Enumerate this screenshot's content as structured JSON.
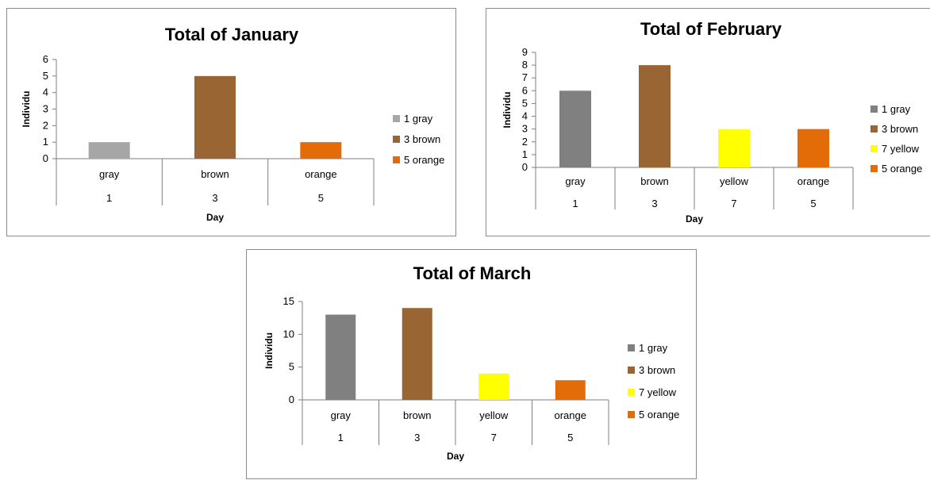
{
  "chart_data": [
    {
      "type": "bar",
      "title": "Total of January",
      "xlabel": "Day",
      "ylabel": "Individu",
      "categories": [
        "gray",
        "brown",
        "orange"
      ],
      "days": [
        "1",
        "3",
        "5"
      ],
      "values": [
        1,
        5,
        1
      ],
      "colors": [
        "#a6a6a6",
        "#996633",
        "#e36c09"
      ],
      "legend": [
        "1 gray",
        "3 brown",
        "5 orange"
      ],
      "ylim": [
        0,
        6
      ],
      "yticks": [
        0,
        1,
        2,
        3,
        4,
        5,
        6
      ],
      "legend_position": "right",
      "grid": false
    },
    {
      "type": "bar",
      "title": "Total of February",
      "xlabel": "Day",
      "ylabel": "Individu",
      "categories": [
        "gray",
        "brown",
        "yellow",
        "orange"
      ],
      "days": [
        "1",
        "3",
        "7",
        "5"
      ],
      "values": [
        6,
        8,
        3,
        3
      ],
      "colors": [
        "#808080",
        "#996633",
        "#ffff00",
        "#e36c09"
      ],
      "legend": [
        "1 gray",
        "3 brown",
        "7 yellow",
        "5 orange"
      ],
      "ylim": [
        0,
        9
      ],
      "yticks": [
        0,
        1,
        2,
        3,
        4,
        5,
        6,
        7,
        8,
        9
      ],
      "legend_position": "right",
      "grid": false
    },
    {
      "type": "bar",
      "title": "Total of March",
      "xlabel": "Day",
      "ylabel": "Individu",
      "categories": [
        "gray",
        "brown",
        "yellow",
        "orange"
      ],
      "days": [
        "1",
        "3",
        "7",
        "5"
      ],
      "values": [
        13,
        14,
        4,
        3
      ],
      "colors": [
        "#808080",
        "#996633",
        "#ffff00",
        "#e36c09"
      ],
      "legend": [
        "1 gray",
        "3 brown",
        "7 yellow",
        "5 orange"
      ],
      "ylim": [
        0,
        15
      ],
      "yticks": [
        0,
        5,
        10,
        15
      ],
      "legend_position": "right",
      "grid": false
    }
  ]
}
